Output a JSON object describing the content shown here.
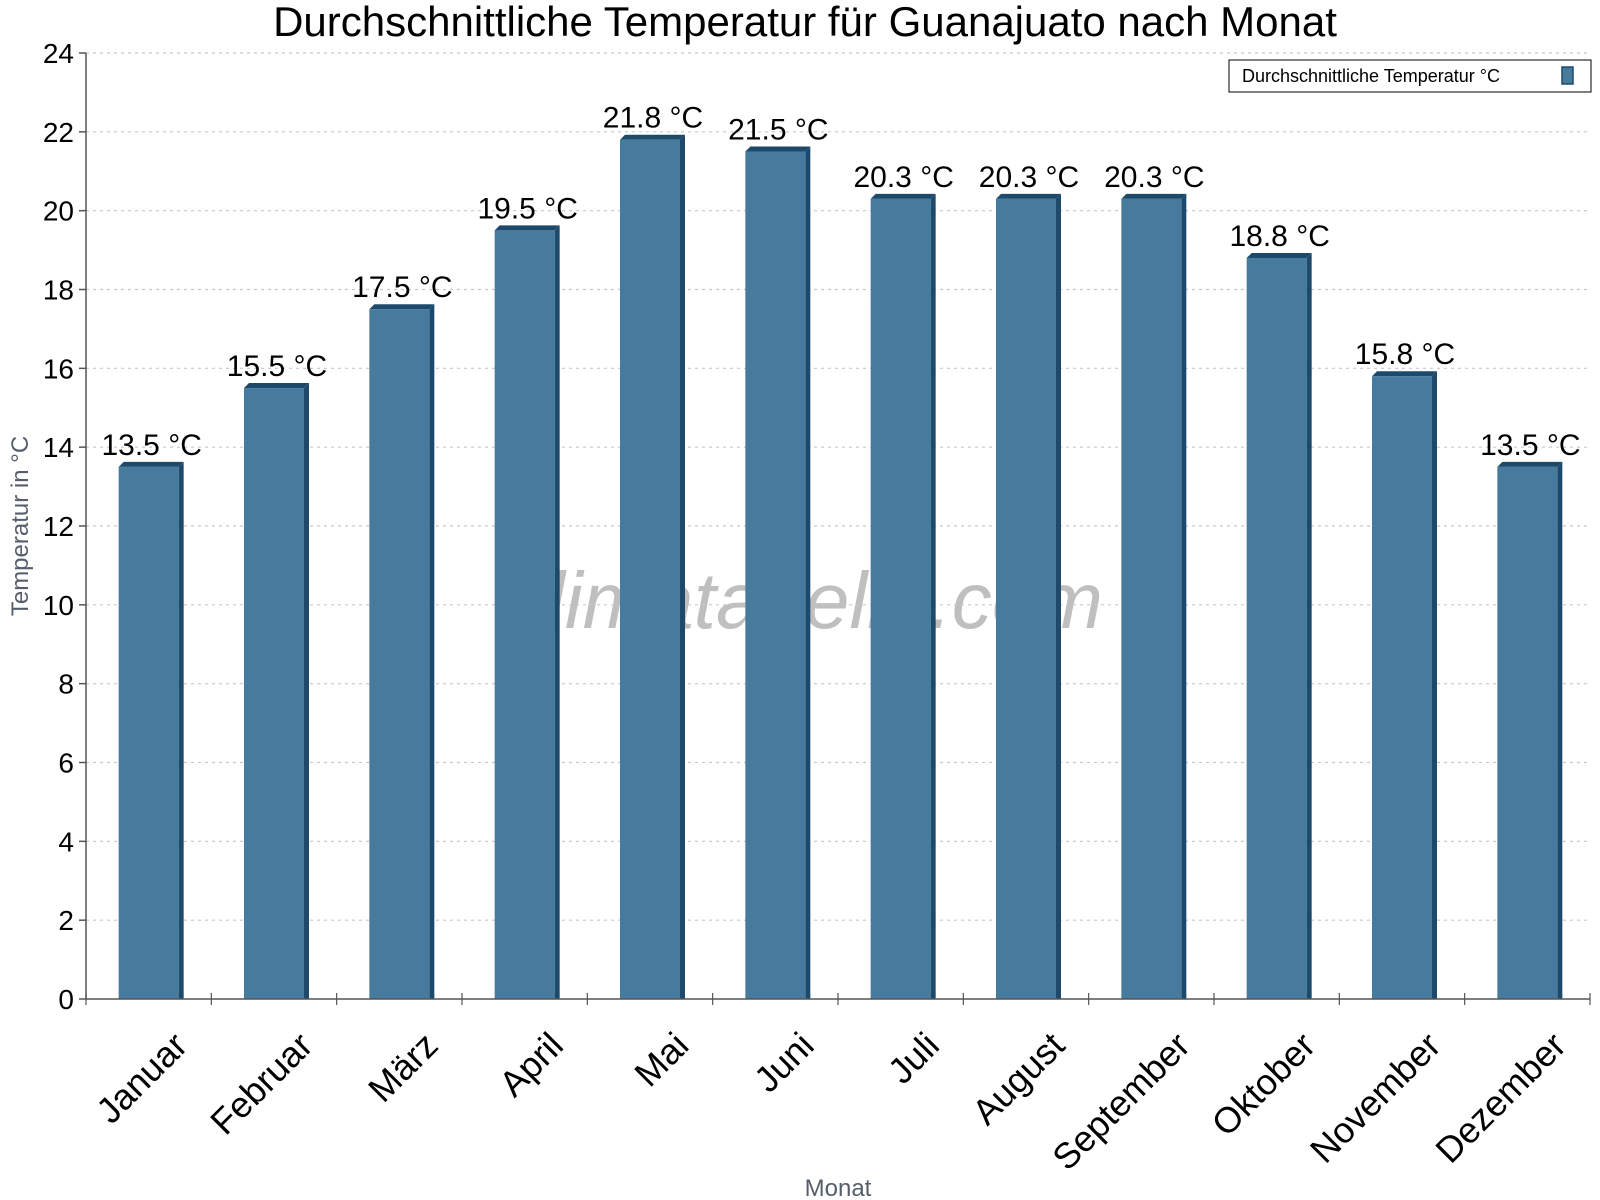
{
  "watermark": "klimatabelle.com",
  "colors": {
    "bar": "#467b9e",
    "bar_dark": "#1d4a6b",
    "grid": "#c8c8c8",
    "axis": "#555555"
  },
  "chart_data": {
    "type": "bar",
    "title": "Durchschnittliche Temperatur für Guanajuato nach Monat",
    "xlabel": "Monat",
    "ylabel": "Temperatur in °C",
    "categories": [
      "Januar",
      "Februar",
      "März",
      "April",
      "Mai",
      "Juni",
      "Juli",
      "August",
      "September",
      "Oktober",
      "November",
      "Dezember"
    ],
    "series": [
      {
        "name": "Durchschnittliche Temperatur °C",
        "values": [
          13.5,
          15.5,
          17.5,
          19.5,
          21.8,
          21.5,
          20.3,
          20.3,
          20.3,
          18.8,
          15.8,
          13.5
        ],
        "labels": [
          "13.5 °C",
          "15.5 °C",
          "17.5 °C",
          "19.5 °C",
          "21.8 °C",
          "21.5 °C",
          "20.3 °C",
          "20.3 °C",
          "20.3 °C",
          "18.8 °C",
          "15.8 °C",
          "13.5 °C"
        ]
      }
    ],
    "ylim": [
      0,
      24
    ],
    "yticks": [
      0,
      2,
      4,
      6,
      8,
      10,
      12,
      14,
      16,
      18,
      20,
      22,
      24
    ],
    "grid": true,
    "legend_position": "top-right"
  }
}
